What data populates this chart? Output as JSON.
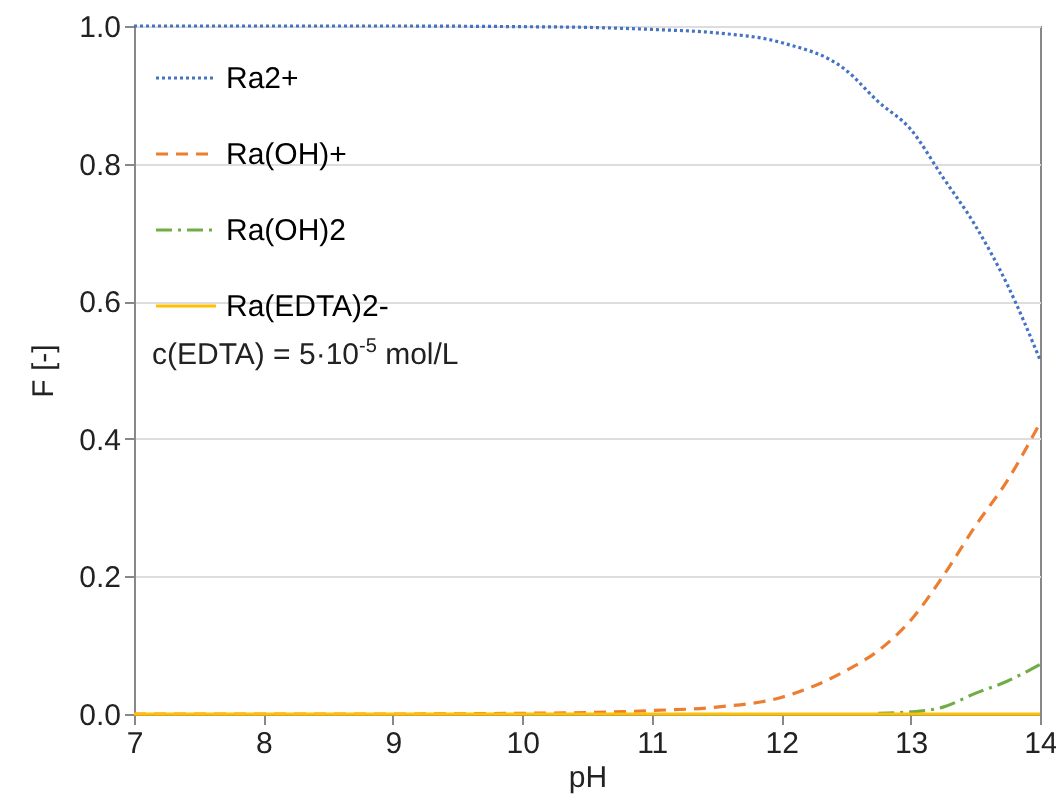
{
  "chart_data": {
    "type": "line",
    "xlabel": "pH",
    "ylabel": "F [-]",
    "x": [
      7,
      8,
      9,
      10,
      10.5,
      11,
      11.5,
      12,
      12.5,
      12.75,
      13,
      13.25,
      13.5,
      13.75,
      14
    ],
    "series": [
      {
        "name": "Ra2+",
        "color": "#4472c4",
        "line_style": "dotted",
        "values": [
          1,
          1,
          1,
          0.999,
          0.998,
          0.995,
          0.99,
          0.976,
          0.936,
          0.89,
          0.85,
          0.78,
          0.71,
          0.623,
          0.515
        ]
      },
      {
        "name": "Ra(OH)+",
        "color": "#ed7d31",
        "line_style": "dashed",
        "values": [
          0,
          0,
          0,
          0.001,
          0.002,
          0.005,
          0.01,
          0.024,
          0.063,
          0.092,
          0.136,
          0.2,
          0.273,
          0.34,
          0.423
        ]
      },
      {
        "name": "Ra(OH)2",
        "color": "#70ad47",
        "line_style": "dashdot",
        "values": [
          null,
          null,
          null,
          null,
          null,
          null,
          null,
          null,
          null,
          0.001,
          0.003,
          0.01,
          0.03,
          0.048,
          0.072
        ]
      },
      {
        "name": "Ra(EDTA)2-",
        "color": "#ffc000",
        "line_style": "solid",
        "values": [
          0,
          0,
          0,
          0,
          0,
          0,
          0,
          0,
          0,
          0,
          0,
          0,
          0,
          0,
          0
        ]
      }
    ],
    "xlim": [
      7,
      14
    ],
    "xticks": [
      7,
      8,
      9,
      10,
      11,
      12,
      13,
      14
    ],
    "ylim": [
      0,
      1
    ],
    "yticks": [
      {
        "value": 0,
        "label": "0.0"
      },
      {
        "value": 0.2,
        "label": "0.2"
      },
      {
        "value": 0.4,
        "label": "0.4"
      },
      {
        "value": 0.6,
        "label": "0.6"
      },
      {
        "value": 0.8,
        "label": "0.8"
      },
      {
        "value": 1,
        "label": "1.0"
      }
    ],
    "grid": "y",
    "legend": "top left",
    "marker": "none",
    "annotations": [
      "c(EDTA) = 5·10$^{-5}$ mol/L"
    ]
  }
}
